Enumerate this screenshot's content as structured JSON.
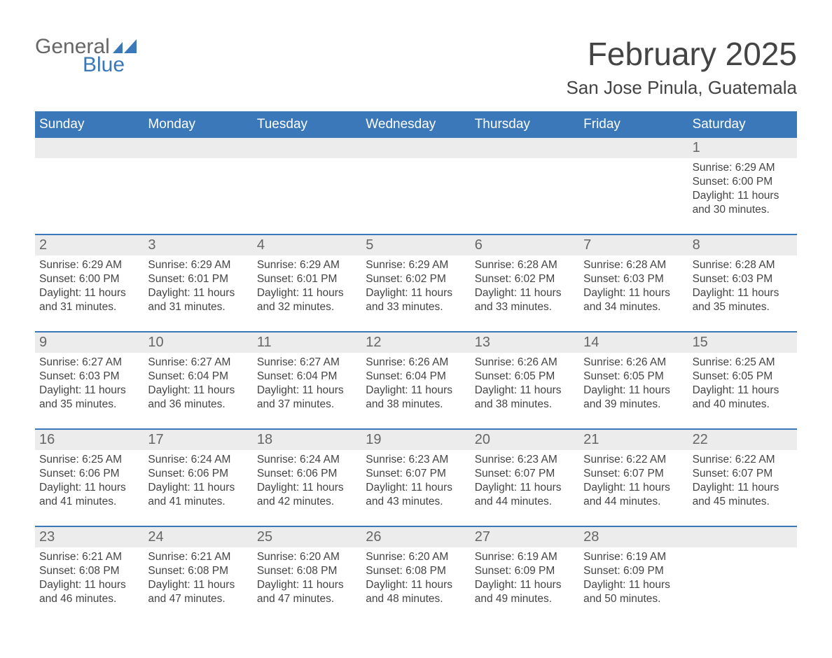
{
  "logo": {
    "text_general": "General",
    "text_blue": "Blue",
    "mark_color": "#3a78b9",
    "general_color": "#666666"
  },
  "title": "February 2025",
  "location": "San Jose Pinula, Guatemala",
  "colors": {
    "header_bg": "#3a78b9",
    "header_text": "#ffffff",
    "row_divider": "#3a78b9",
    "daynum_bg": "#ececec",
    "daynum_text": "#666666",
    "body_text": "#444444",
    "background": "#ffffff"
  },
  "typography": {
    "title_fontsize": 46,
    "location_fontsize": 26,
    "weekday_fontsize": 19,
    "daynum_fontsize": 20,
    "body_fontsize": 15.5
  },
  "weekdays": [
    "Sunday",
    "Monday",
    "Tuesday",
    "Wednesday",
    "Thursday",
    "Friday",
    "Saturday"
  ],
  "start_weekday_index": 6,
  "days": [
    {
      "n": 1,
      "sunrise": "6:29 AM",
      "sunset": "6:00 PM",
      "daylight": "11 hours and 30 minutes."
    },
    {
      "n": 2,
      "sunrise": "6:29 AM",
      "sunset": "6:00 PM",
      "daylight": "11 hours and 31 minutes."
    },
    {
      "n": 3,
      "sunrise": "6:29 AM",
      "sunset": "6:01 PM",
      "daylight": "11 hours and 31 minutes."
    },
    {
      "n": 4,
      "sunrise": "6:29 AM",
      "sunset": "6:01 PM",
      "daylight": "11 hours and 32 minutes."
    },
    {
      "n": 5,
      "sunrise": "6:29 AM",
      "sunset": "6:02 PM",
      "daylight": "11 hours and 33 minutes."
    },
    {
      "n": 6,
      "sunrise": "6:28 AM",
      "sunset": "6:02 PM",
      "daylight": "11 hours and 33 minutes."
    },
    {
      "n": 7,
      "sunrise": "6:28 AM",
      "sunset": "6:03 PM",
      "daylight": "11 hours and 34 minutes."
    },
    {
      "n": 8,
      "sunrise": "6:28 AM",
      "sunset": "6:03 PM",
      "daylight": "11 hours and 35 minutes."
    },
    {
      "n": 9,
      "sunrise": "6:27 AM",
      "sunset": "6:03 PM",
      "daylight": "11 hours and 35 minutes."
    },
    {
      "n": 10,
      "sunrise": "6:27 AM",
      "sunset": "6:04 PM",
      "daylight": "11 hours and 36 minutes."
    },
    {
      "n": 11,
      "sunrise": "6:27 AM",
      "sunset": "6:04 PM",
      "daylight": "11 hours and 37 minutes."
    },
    {
      "n": 12,
      "sunrise": "6:26 AM",
      "sunset": "6:04 PM",
      "daylight": "11 hours and 38 minutes."
    },
    {
      "n": 13,
      "sunrise": "6:26 AM",
      "sunset": "6:05 PM",
      "daylight": "11 hours and 38 minutes."
    },
    {
      "n": 14,
      "sunrise": "6:26 AM",
      "sunset": "6:05 PM",
      "daylight": "11 hours and 39 minutes."
    },
    {
      "n": 15,
      "sunrise": "6:25 AM",
      "sunset": "6:05 PM",
      "daylight": "11 hours and 40 minutes."
    },
    {
      "n": 16,
      "sunrise": "6:25 AM",
      "sunset": "6:06 PM",
      "daylight": "11 hours and 41 minutes."
    },
    {
      "n": 17,
      "sunrise": "6:24 AM",
      "sunset": "6:06 PM",
      "daylight": "11 hours and 41 minutes."
    },
    {
      "n": 18,
      "sunrise": "6:24 AM",
      "sunset": "6:06 PM",
      "daylight": "11 hours and 42 minutes."
    },
    {
      "n": 19,
      "sunrise": "6:23 AM",
      "sunset": "6:07 PM",
      "daylight": "11 hours and 43 minutes."
    },
    {
      "n": 20,
      "sunrise": "6:23 AM",
      "sunset": "6:07 PM",
      "daylight": "11 hours and 44 minutes."
    },
    {
      "n": 21,
      "sunrise": "6:22 AM",
      "sunset": "6:07 PM",
      "daylight": "11 hours and 44 minutes."
    },
    {
      "n": 22,
      "sunrise": "6:22 AM",
      "sunset": "6:07 PM",
      "daylight": "11 hours and 45 minutes."
    },
    {
      "n": 23,
      "sunrise": "6:21 AM",
      "sunset": "6:08 PM",
      "daylight": "11 hours and 46 minutes."
    },
    {
      "n": 24,
      "sunrise": "6:21 AM",
      "sunset": "6:08 PM",
      "daylight": "11 hours and 47 minutes."
    },
    {
      "n": 25,
      "sunrise": "6:20 AM",
      "sunset": "6:08 PM",
      "daylight": "11 hours and 47 minutes."
    },
    {
      "n": 26,
      "sunrise": "6:20 AM",
      "sunset": "6:08 PM",
      "daylight": "11 hours and 48 minutes."
    },
    {
      "n": 27,
      "sunrise": "6:19 AM",
      "sunset": "6:09 PM",
      "daylight": "11 hours and 49 minutes."
    },
    {
      "n": 28,
      "sunrise": "6:19 AM",
      "sunset": "6:09 PM",
      "daylight": "11 hours and 50 minutes."
    }
  ],
  "labels": {
    "sunrise": "Sunrise:",
    "sunset": "Sunset:",
    "daylight": "Daylight:"
  }
}
